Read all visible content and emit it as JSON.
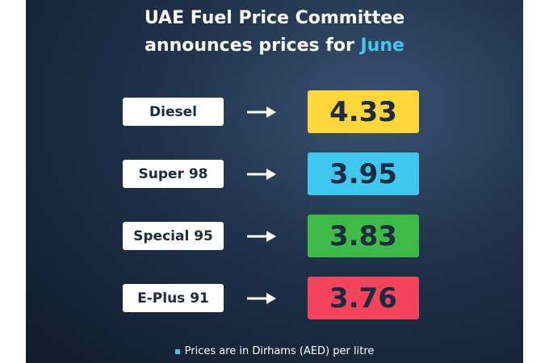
{
  "header": {
    "title_line1": "UAE Fuel Price Committee",
    "title_line2": "announces prices for",
    "title_month": "June"
  },
  "prices": [
    {
      "fuel": "Diesel",
      "price": 4.33,
      "color": "#fdd73a"
    },
    {
      "fuel": "Super 98",
      "price": 3.95,
      "color": "#3ec8f0"
    },
    {
      "fuel": "Special 95",
      "price": 3.83,
      "color": "#3dba48"
    },
    {
      "fuel": "E-Plus 91",
      "price": 3.76,
      "color": "#f4435c"
    }
  ],
  "footnote": "Prices are in Dirhams (AED) per litre"
}
